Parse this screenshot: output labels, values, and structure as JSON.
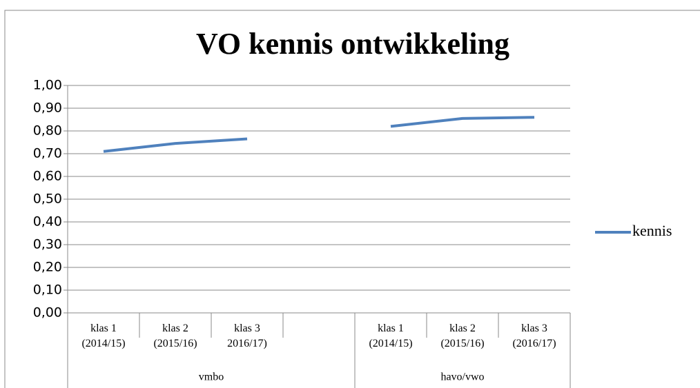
{
  "chart_data": {
    "type": "line",
    "title": "VO kennis ontwikkeling",
    "categories": [
      "klas 1\n(2014/15)",
      "klas 2\n(2015/16)",
      "klas 3\n2016/17)",
      null,
      "klas 1\n(2014/15)",
      "klas 2\n(2015/16)",
      "klas 3\n(2016/17)"
    ],
    "groups": [
      {
        "label": "vmbo",
        "span": 4
      },
      {
        "label": "havo/vwo",
        "span": 3
      }
    ],
    "series": [
      {
        "name": "kennis",
        "color": "#4f81bd",
        "values": [
          0.71,
          0.745,
          0.765,
          null,
          0.82,
          0.855,
          0.86
        ]
      }
    ],
    "ylim": [
      0,
      1
    ],
    "yticks": [
      {
        "value": 0,
        "label": "0,00"
      },
      {
        "value": 0.1,
        "label": "0,10"
      },
      {
        "value": 0.2,
        "label": "0,20"
      },
      {
        "value": 0.3,
        "label": "0,30"
      },
      {
        "value": 0.4,
        "label": "0,40"
      },
      {
        "value": 0.5,
        "label": "0,50"
      },
      {
        "value": 0.6,
        "label": "0,60"
      },
      {
        "value": 0.7,
        "label": "0,70"
      },
      {
        "value": 0.8,
        "label": "0,80"
      },
      {
        "value": 0.9,
        "label": "0,90"
      },
      {
        "value": 1,
        "label": "1,00"
      }
    ],
    "grid": true,
    "legend": "right"
  }
}
